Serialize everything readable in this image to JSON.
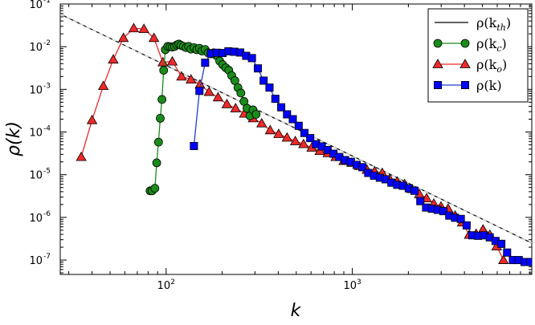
{
  "chart_data": {
    "type": "line",
    "title": "",
    "xlabel": "k",
    "ylabel": "ρ(k)",
    "xscale": "log",
    "yscale": "log",
    "xlim": [
      27,
      9200
    ],
    "ylim": [
      4.6e-08,
      0.1
    ],
    "grid": false,
    "legend_position": "top-right",
    "x_ticks": [
      {
        "value": 100,
        "base": "10",
        "exp": "2"
      },
      {
        "value": 1000,
        "base": "10",
        "exp": "3"
      }
    ],
    "y_ticks": [
      {
        "value": 0.1,
        "base": "10",
        "exp": "-1"
      },
      {
        "value": 0.01,
        "base": "10",
        "exp": "-2"
      },
      {
        "value": 0.001,
        "base": "10",
        "exp": "-3"
      },
      {
        "value": 0.0001,
        "base": "10",
        "exp": "-4"
      },
      {
        "value": 1e-05,
        "base": "10",
        "exp": "-5"
      },
      {
        "value": 1e-06,
        "base": "10",
        "exp": "-6"
      },
      {
        "value": 1e-07,
        "base": "10",
        "exp": "-7"
      }
    ],
    "series": [
      {
        "name": "ρ(k_th)",
        "label_base": "ρ(k",
        "label_sub": "th",
        "label_end": ")",
        "style": "line",
        "color": "#000000",
        "marker": "none",
        "marker_color": "",
        "x": [
          27,
          9200
        ],
        "y": [
          0.058,
          2.5e-07
        ]
      },
      {
        "name": "ρ(k_c)",
        "label_base": "ρ(k",
        "label_sub": "c",
        "label_end": ")",
        "style": "line-marker",
        "color": "#1a8c1a",
        "marker": "circle",
        "marker_color": "#1a8c1a",
        "x": [
          82,
          84,
          87,
          89,
          91,
          93,
          95,
          97,
          99,
          102,
          105,
          108,
          111,
          114,
          117,
          120,
          124,
          128,
          132,
          136,
          141,
          146,
          151,
          156,
          162,
          168,
          174,
          180,
          187,
          194,
          201,
          209,
          217,
          225,
          234,
          243,
          252,
          262,
          272,
          282,
          293,
          304
        ],
        "y": [
          4.2e-06,
          4.2e-06,
          4.8e-06,
          1.9e-05,
          5.8e-05,
          0.00021,
          0.00058,
          0.0028,
          0.0085,
          0.0102,
          0.01,
          0.0098,
          0.0101,
          0.011,
          0.0115,
          0.0108,
          0.0102,
          0.0095,
          0.0102,
          0.0088,
          0.0095,
          0.0085,
          0.0092,
          0.0079,
          0.0086,
          0.0072,
          0.0068,
          0.0072,
          0.0061,
          0.0046,
          0.0038,
          0.0032,
          0.0028,
          0.0021,
          0.0016,
          0.0011,
          0.00082,
          0.00052,
          0.00036,
          0.00024,
          0.00033,
          0.00026
        ]
      },
      {
        "name": "ρ(k_o)",
        "label_base": "ρ(k",
        "label_sub": "o",
        "label_end": ")",
        "style": "line-marker",
        "color": "#ee2a2a",
        "marker": "triangle",
        "marker_color": "#ee2a2a",
        "x": [
          35,
          40,
          46,
          52,
          59,
          67,
          76,
          86,
          96,
          108,
          121,
          136,
          152,
          170,
          190,
          212,
          236,
          263,
          293,
          326,
          362,
          402,
          446,
          494,
          547,
          605,
          669,
          739,
          815,
          899,
          990,
          1090,
          1199,
          1318,
          1448,
          1589,
          1743,
          1910,
          2092,
          2290,
          2505,
          2739,
          2993,
          3268,
          3567,
          3891,
          4242,
          4623,
          5035,
          5480,
          5962,
          6483
        ],
        "y": [
          2.6e-05,
          0.00019,
          0.0012,
          0.005,
          0.016,
          0.027,
          0.026,
          0.016,
          0.0043,
          0.0045,
          0.002,
          0.0017,
          0.0013,
          0.00087,
          0.00065,
          0.00045,
          0.00036,
          0.00027,
          0.00021,
          0.00016,
          0.00011,
          9e-05,
          7.4e-05,
          6.1e-05,
          5.2e-05,
          4.3e-05,
          3.6e-05,
          3.2e-05,
          2.6e-05,
          2.1e-05,
          1.9e-05,
          1.6e-05,
          1.3e-05,
          1.2e-05,
          1.1e-05,
          7.9e-06,
          6.9e-06,
          6e-06,
          4.6e-06,
          3.5e-06,
          2.8e-06,
          2.1e-06,
          1.8e-06,
          1.6e-06,
          1.1e-06,
          7.6e-07,
          3.9e-07,
          4.1e-07,
          5.2e-07,
          3.9e-07,
          2.1e-07,
          1e-07
        ]
      },
      {
        "name": "ρ(k)",
        "label_base": "ρ(k",
        "label_sub": "",
        "label_end": ")",
        "style": "line-marker",
        "color": "#1f3fcf",
        "marker": "square",
        "marker_color": "#0000ff",
        "x": [
          141,
          151,
          162,
          174,
          187,
          201,
          216,
          232,
          250,
          269,
          289,
          311,
          334,
          359,
          386,
          415,
          446,
          479,
          515,
          553,
          594,
          638,
          686,
          737,
          792,
          851,
          914,
          982,
          1055,
          1133,
          1217,
          1308,
          1405,
          1509,
          1621,
          1741,
          1870,
          2009,
          2158,
          2318,
          2490,
          2675,
          2873,
          3086,
          3315,
          3561,
          3825,
          4109,
          4414,
          4741,
          5093,
          5471,
          5877,
          6313,
          6781,
          7284,
          7824,
          8404,
          9027
        ],
        "y": [
          4.7e-05,
          0.00092,
          0.0042,
          0.0069,
          0.0072,
          0.0071,
          0.0078,
          0.0076,
          0.0073,
          0.0061,
          0.0054,
          0.0031,
          0.0016,
          0.0011,
          0.0006,
          0.00038,
          0.00026,
          0.0002,
          0.00014,
          9.5e-05,
          7.2e-05,
          5.2e-05,
          4.6e-05,
          3.8e-05,
          3.1e-05,
          2.6e-05,
          2.2e-05,
          2e-05,
          1.7e-05,
          1.5e-05,
          1.1e-05,
          9.5e-06,
          8.5e-06,
          7.8e-06,
          6.5e-06,
          5.8e-06,
          5.5e-06,
          4.8e-06,
          4.2e-06,
          2.4e-06,
          1.7e-06,
          1.6e-06,
          1.5e-06,
          1.4e-06,
          1.1e-06,
          9.8e-07,
          9.2e-07,
          6.5e-07,
          3.8e-07,
          3.7e-07,
          3.8e-07,
          3.4e-07,
          2.8e-07,
          2.4e-07,
          1.5e-07,
          1e-07,
          1e-07,
          9e-08,
          9e-08
        ]
      }
    ]
  }
}
